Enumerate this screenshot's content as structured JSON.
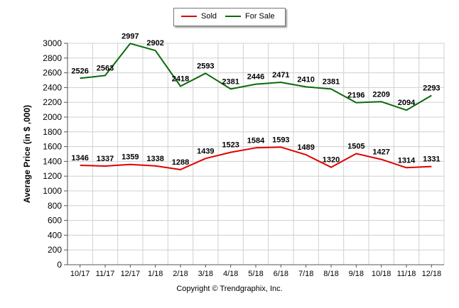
{
  "chart_data": {
    "type": "line",
    "categories": [
      "10/17",
      "11/17",
      "12/17",
      "1/18",
      "2/18",
      "3/18",
      "4/18",
      "5/18",
      "6/18",
      "7/18",
      "8/18",
      "9/18",
      "10/18",
      "11/18",
      "12/18"
    ],
    "series": [
      {
        "name": "Sold",
        "color": "#e00000",
        "values": [
          1346,
          1337,
          1359,
          1338,
          1288,
          1439,
          1523,
          1584,
          1593,
          1489,
          1320,
          1505,
          1427,
          1314,
          1331
        ]
      },
      {
        "name": "For Sale",
        "color": "#0a6a0a",
        "values": [
          2526,
          2563,
          2997,
          2902,
          2418,
          2593,
          2381,
          2446,
          2471,
          2410,
          2381,
          2196,
          2209,
          2094,
          2293
        ]
      }
    ],
    "ylabel": "Average Price (in $ ,000)",
    "ylim": [
      0,
      3000
    ],
    "yticks": [
      0,
      200,
      400,
      600,
      800,
      1000,
      1200,
      1400,
      1600,
      1800,
      2000,
      2200,
      2400,
      2600,
      2800,
      3000
    ],
    "grid": true,
    "legend_position": "top-center"
  },
  "footer": {
    "copyright": "Copyright © Trendgraphix, Inc."
  }
}
